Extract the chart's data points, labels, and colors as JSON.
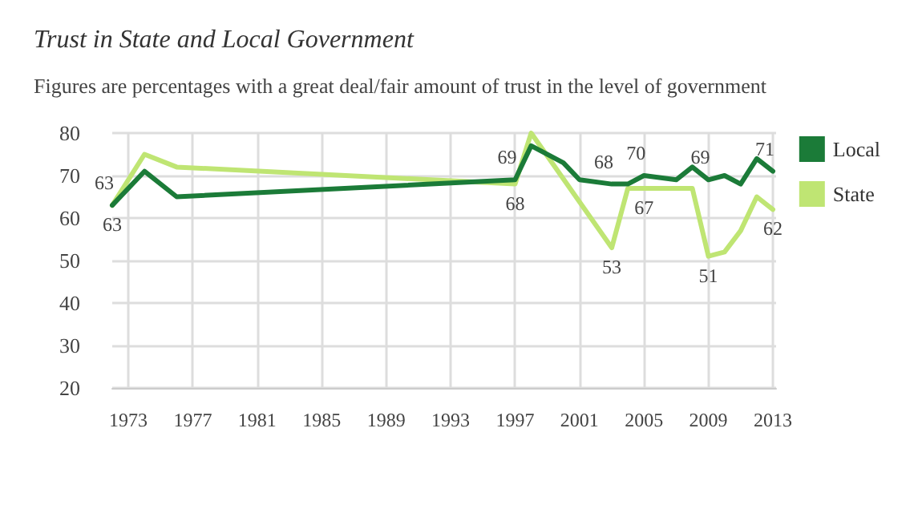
{
  "chart_data": {
    "type": "line",
    "title": "Trust in State and Local Government",
    "subtitle": "Figures are percentages with a great deal/fair amount of trust in the level of government",
    "series": [
      {
        "name": "Local",
        "color": "#1b7b38",
        "x": [
          1972,
          1974,
          1976,
          1997,
          1998,
          2000,
          2001,
          2003,
          2004,
          2005,
          2007,
          2008,
          2009,
          2010,
          2011,
          2012,
          2013
        ],
        "values": [
          63,
          71,
          65,
          69,
          77,
          73,
          69,
          68,
          68,
          70,
          69,
          72,
          69,
          70,
          68,
          74,
          71
        ],
        "value_labels": [
          "63",
          null,
          null,
          "69",
          null,
          null,
          null,
          "68",
          null,
          "70",
          null,
          null,
          "69",
          null,
          null,
          null,
          "71"
        ]
      },
      {
        "name": "State",
        "color": "#bfe573",
        "x": [
          1972,
          1974,
          1976,
          1997,
          1998,
          2003,
          2004,
          2005,
          2007,
          2008,
          2009,
          2010,
          2011,
          2012,
          2013
        ],
        "values": [
          63,
          75,
          72,
          68,
          80,
          53,
          67,
          67,
          67,
          67,
          51,
          52,
          57,
          65,
          62
        ],
        "value_labels": [
          "63",
          null,
          null,
          "68",
          null,
          "53",
          null,
          "67",
          null,
          null,
          "51",
          null,
          null,
          null,
          "62"
        ]
      }
    ],
    "xlim": [
      1972,
      2013.2
    ],
    "xticks": [
      1973,
      1977,
      1981,
      1985,
      1989,
      1993,
      1997,
      2001,
      2005,
      2009,
      2013
    ],
    "ylim": [
      20,
      80
    ],
    "yticks": [
      20,
      30,
      40,
      50,
      60,
      70,
      80
    ],
    "grid": true,
    "legend": "right",
    "marker": "none",
    "line_style": "solid"
  }
}
